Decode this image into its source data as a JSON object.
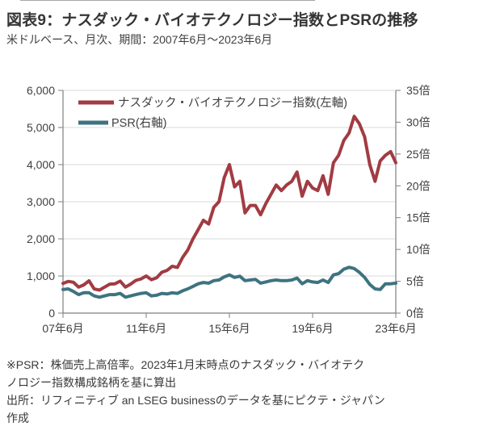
{
  "header": {
    "title": "図表9：ナスダック・バイオテクノロジー指数とPSRの推移",
    "subtitle": "米ドルベース、月次、期間：2007年6月～2023年6月"
  },
  "notes": {
    "line1": "※PSR：株価売上高倍率。2023年1月末時点のナスダック・バイオテク",
    "line2": "ノロジー指数構成銘柄を基に算出",
    "line3": "出所：リフィニティブ an LSEG businessのデータを基にピクテ・ジャパン",
    "line4": "作成"
  },
  "colors": {
    "index_line": "#a23b42",
    "psr_line": "#3e7380",
    "grid": "#d9d9d9",
    "axis": "#7f7f7f",
    "tick_text": "#3f3f3f"
  },
  "chart_data": {
    "type": "line",
    "title": "ナスダック・バイオテクノロジー指数とPSRの推移",
    "x_tick_labels": [
      "07年6月",
      "11年6月",
      "15年6月",
      "19年6月",
      "23年6月"
    ],
    "y_left_tick_labels": [
      "6,000",
      "5,000",
      "4,000",
      "3,000",
      "2,000",
      "1,000",
      "0"
    ],
    "y_right_tick_labels": [
      "35倍",
      "30倍",
      "25倍",
      "20倍",
      "15倍",
      "10倍",
      "5倍",
      "0倍"
    ],
    "y_left_range": [
      0,
      6000
    ],
    "y_right_range": [
      0,
      35
    ],
    "grid": true,
    "legend_position": "top-left-inside",
    "x": [
      "2007-06",
      "2007-09",
      "2007-12",
      "2008-03",
      "2008-06",
      "2008-09",
      "2008-12",
      "2009-03",
      "2009-06",
      "2009-09",
      "2009-12",
      "2010-03",
      "2010-06",
      "2010-09",
      "2010-12",
      "2011-03",
      "2011-06",
      "2011-09",
      "2011-12",
      "2012-03",
      "2012-06",
      "2012-09",
      "2012-12",
      "2013-03",
      "2013-06",
      "2013-09",
      "2013-12",
      "2014-03",
      "2014-06",
      "2014-09",
      "2014-12",
      "2015-03",
      "2015-06",
      "2015-09",
      "2015-12",
      "2016-03",
      "2016-06",
      "2016-09",
      "2016-12",
      "2017-03",
      "2017-06",
      "2017-09",
      "2017-12",
      "2018-03",
      "2018-06",
      "2018-09",
      "2018-12",
      "2019-03",
      "2019-06",
      "2019-09",
      "2019-12",
      "2020-03",
      "2020-06",
      "2020-09",
      "2020-12",
      "2021-03",
      "2021-06",
      "2021-09",
      "2021-12",
      "2022-03",
      "2022-06",
      "2022-09",
      "2022-12",
      "2023-03",
      "2023-06"
    ],
    "series": [
      {
        "name": "ナスダック・バイオテクノロジー指数(左軸)",
        "axis": "left",
        "values": [
          800,
          855,
          830,
          700,
          760,
          870,
          650,
          620,
          700,
          780,
          790,
          860,
          700,
          780,
          880,
          920,
          1000,
          900,
          950,
          1100,
          1150,
          1260,
          1230,
          1500,
          1700,
          2000,
          2250,
          2500,
          2400,
          2850,
          3000,
          3650,
          4000,
          3400,
          3550,
          2700,
          2900,
          2900,
          2650,
          2950,
          3200,
          3450,
          3300,
          3450,
          3550,
          3800,
          3150,
          3550,
          3370,
          3300,
          3700,
          3200,
          4050,
          4250,
          4650,
          4850,
          5300,
          5100,
          4750,
          4000,
          3550,
          4100,
          4250,
          4350,
          4050
        ]
      },
      {
        "name": "PSR(右軸)",
        "axis": "right",
        "values": [
          3.7,
          3.8,
          3.4,
          2.9,
          3.2,
          3.2,
          2.7,
          2.5,
          2.7,
          2.9,
          2.9,
          3.1,
          2.5,
          2.7,
          2.9,
          3.1,
          3.2,
          2.7,
          2.8,
          3.1,
          3.0,
          3.2,
          3.1,
          3.5,
          3.8,
          4.2,
          4.6,
          4.8,
          4.7,
          5.1,
          5.2,
          5.7,
          6.0,
          5.6,
          5.8,
          5.1,
          5.2,
          5.3,
          4.7,
          4.9,
          5.1,
          5.2,
          5.1,
          5.1,
          5.2,
          5.5,
          4.6,
          5.1,
          4.9,
          4.8,
          5.2,
          4.8,
          6.0,
          6.2,
          6.9,
          7.2,
          7.0,
          6.4,
          5.6,
          4.5,
          3.8,
          3.7,
          4.6,
          4.6,
          4.7
        ]
      }
    ]
  }
}
